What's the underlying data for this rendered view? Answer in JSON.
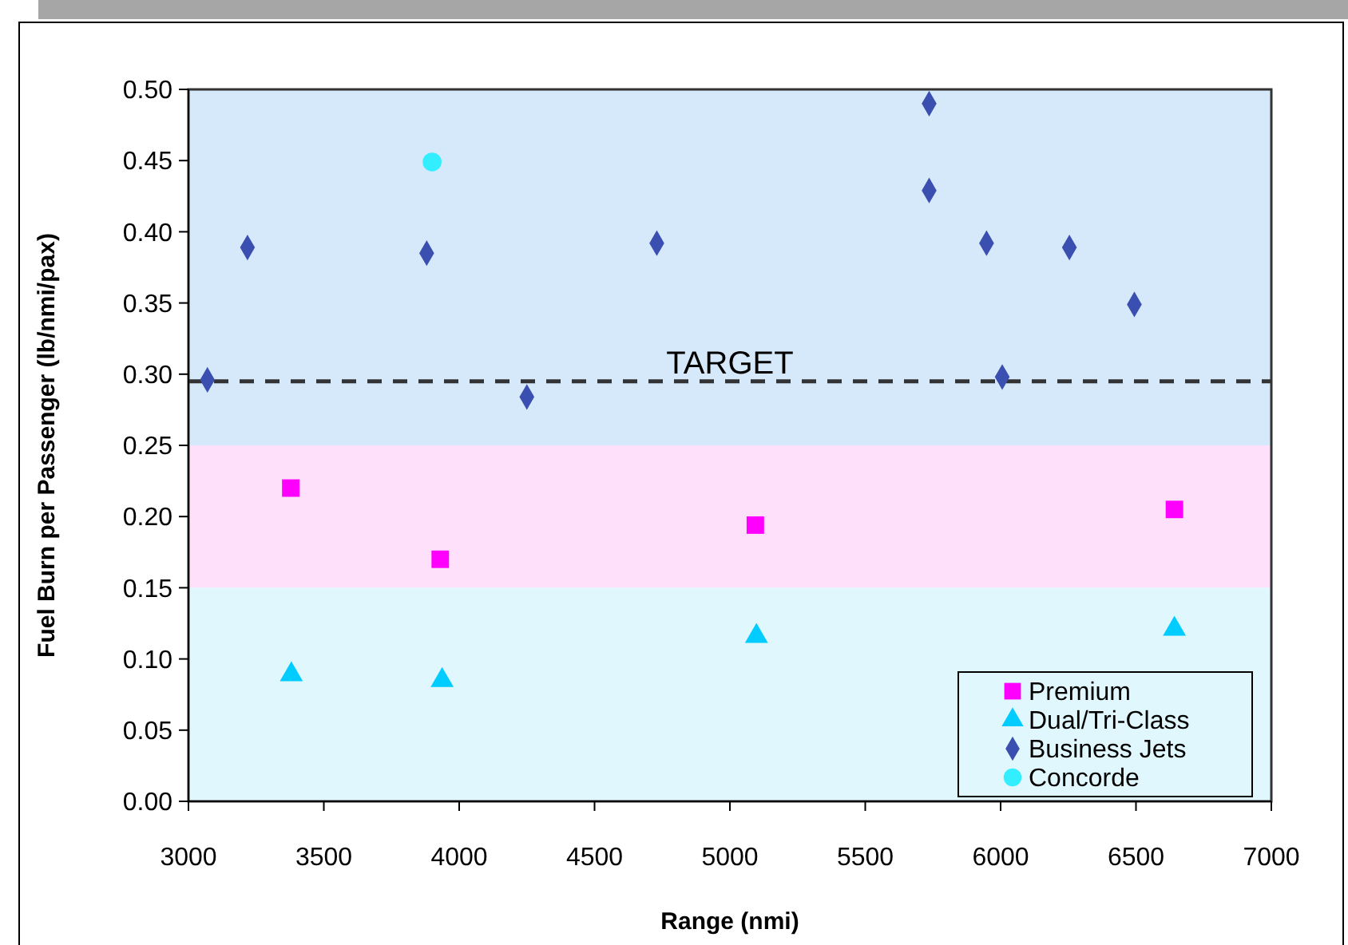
{
  "chart_data": {
    "type": "scatter",
    "xlabel": "Range (nmi)",
    "ylabel": "Fuel Burn per Passenger (lb/nmi/pax)",
    "xlim": [
      3000,
      7000
    ],
    "xticks": [
      3000,
      3500,
      4000,
      4500,
      5000,
      5500,
      6000,
      6500,
      7000
    ],
    "ylim": [
      0,
      0.5
    ],
    "yticks": [
      {
        "value": 0,
        "label": "0.00"
      },
      {
        "value": 0.05,
        "label": "0.05"
      },
      {
        "value": 0.1,
        "label": "0.10"
      },
      {
        "value": 0.15,
        "label": "0.15"
      },
      {
        "value": 0.2,
        "label": "0.20"
      },
      {
        "value": 0.25,
        "label": "0.25"
      },
      {
        "value": 0.3,
        "label": "0.30"
      },
      {
        "value": 0.35,
        "label": "0.35"
      },
      {
        "value": 0.4,
        "label": "0.40"
      },
      {
        "value": 0.45,
        "label": "0.45"
      },
      {
        "value": 0.5,
        "label": "0.50"
      }
    ],
    "grid": false,
    "legend": "bottom right",
    "bands": [
      {
        "axis": "y",
        "from": 0.25,
        "to": 0.5,
        "color": "#d6e9fb"
      },
      {
        "axis": "y",
        "from": 0.15,
        "to": 0.25,
        "color": "#fee0fb"
      },
      {
        "axis": "y",
        "from": 0,
        "to": 0.15,
        "color": "#e0f7fe"
      }
    ],
    "ref_lines": [
      {
        "axis": "y",
        "value": 0.295,
        "label": "TARGET",
        "color": "#333333",
        "line_style": "dashed"
      }
    ],
    "series": [
      {
        "name": "Premium",
        "color": "#ff00ff",
        "marker": "square",
        "x": [
          3378,
          3930,
          5094,
          6642
        ],
        "values": [
          0.22,
          0.17,
          0.194,
          0.205
        ]
      },
      {
        "name": "Dual/Tri-Class",
        "color": "#00ccff",
        "marker": "triangle",
        "x": [
          3380,
          3937,
          5098,
          6642
        ],
        "values": [
          0.089,
          0.085,
          0.116,
          0.121
        ]
      },
      {
        "name": "Business Jets",
        "color": "#3a4fb0",
        "marker": "diamond",
        "x": [
          3070,
          3218,
          3880,
          4250,
          4730,
          5736,
          5736,
          5948,
          6254,
          6494,
          6006
        ],
        "values": [
          0.296,
          0.389,
          0.385,
          0.284,
          0.392,
          0.49,
          0.429,
          0.392,
          0.389,
          0.349,
          0.298
        ]
      },
      {
        "name": "Concorde",
        "color": "#33eeff",
        "marker": "circle",
        "x": [
          3900
        ],
        "values": [
          0.449
        ]
      }
    ]
  }
}
